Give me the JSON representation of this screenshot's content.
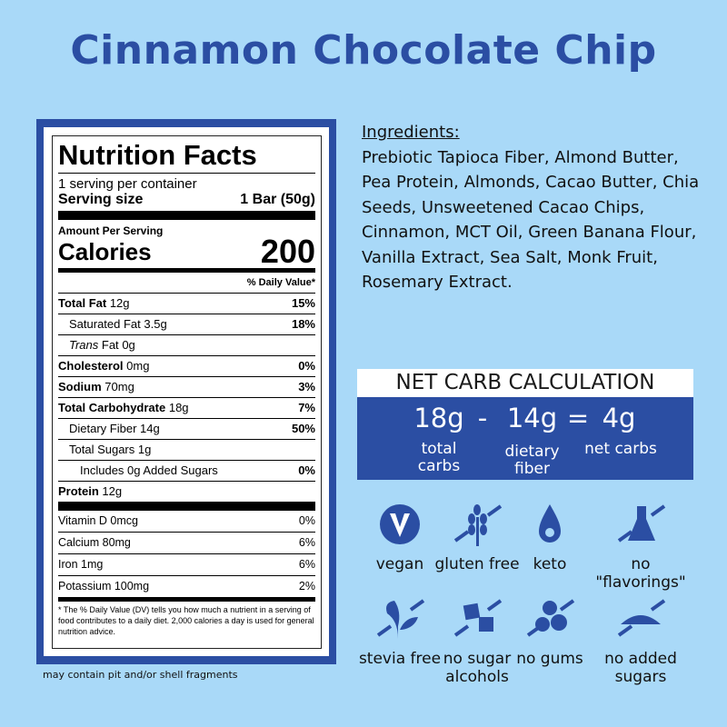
{
  "title": "Cinnamon Chocolate Chip",
  "nutrition": {
    "heading": "Nutrition Facts",
    "servings": "1 serving per container",
    "serving_size_label": "Serving size",
    "serving_size": "1 Bar (50g)",
    "amount_per_serving": "Amount Per Serving",
    "calories_label": "Calories",
    "calories": "200",
    "dv_header": "% Daily Value*",
    "rows": [
      {
        "name": "Total Fat",
        "amount": "12g",
        "dv": "15%"
      },
      {
        "name": "Saturated Fat",
        "amount": "3.5g",
        "dv": "18%"
      },
      {
        "name": "Trans",
        "name2": "Fat",
        "amount": "0g",
        "dv": ""
      },
      {
        "name": "Cholesterol",
        "amount": "0mg",
        "dv": "0%"
      },
      {
        "name": "Sodium",
        "amount": "70mg",
        "dv": "3%"
      },
      {
        "name": "Total Carbohydrate",
        "amount": "18g",
        "dv": "7%"
      },
      {
        "name": "Dietary Fiber",
        "amount": "14g",
        "dv": "50%"
      },
      {
        "name": "Total Sugars",
        "amount": "1g",
        "dv": ""
      },
      {
        "name": "Includes 0g Added Sugars",
        "amount": "",
        "dv": "0%"
      },
      {
        "name": "Protein",
        "amount": "12g",
        "dv": ""
      }
    ],
    "vitamins": [
      {
        "name": "Vitamin D 0mcg",
        "dv": "0%"
      },
      {
        "name": "Calcium 80mg",
        "dv": "6%"
      },
      {
        "name": "Iron 1mg",
        "dv": "6%"
      },
      {
        "name": "Potassium 100mg",
        "dv": "2%"
      }
    ],
    "footnote": "* The % Daily Value (DV) tells you how much a nutrient in a serving of food contributes to a daily diet. 2,000 calories a day is used for general nutrition advice."
  },
  "note": "may contain pit and/or shell fragments",
  "ingredients": {
    "heading": "Ingredients:",
    "text": "Prebiotic Tapioca Fiber, Almond Butter, Pea Protein, Almonds, Cacao Butter, Chia Seeds, Unsweetened Cacao Chips, Cinnamon, MCT Oil, Green Banana Flour, Vanilla Extract, Sea Salt, Monk Fruit, Rosemary Extract."
  },
  "net_carb": {
    "heading": "NET CARB CALCULATION",
    "total": "18g",
    "minus": "-",
    "fiber": "14g",
    "equals": "=",
    "net": "4g",
    "total_label": "total carbs",
    "fiber_label": "dietary fiber",
    "net_label": "net carbs"
  },
  "badges": [
    {
      "icon": "vegan-icon",
      "label": "vegan"
    },
    {
      "icon": "wheat-crossed-icon",
      "label": "gluten free"
    },
    {
      "icon": "drop-icon",
      "label": "keto"
    },
    {
      "icon": "flask-crossed-icon",
      "label": "no \"flavorings\""
    },
    {
      "icon": "leaf-crossed-icon",
      "label": "stevia free"
    },
    {
      "icon": "sugar-cubes-crossed-icon",
      "label": "no sugar alcohols"
    },
    {
      "icon": "pills-crossed-icon",
      "label": "no gums"
    },
    {
      "icon": "sugar-pile-crossed-icon",
      "label": "no added sugars"
    }
  ],
  "colors": {
    "background": "#a9d9f8",
    "brand_blue": "#2b4ea3"
  }
}
